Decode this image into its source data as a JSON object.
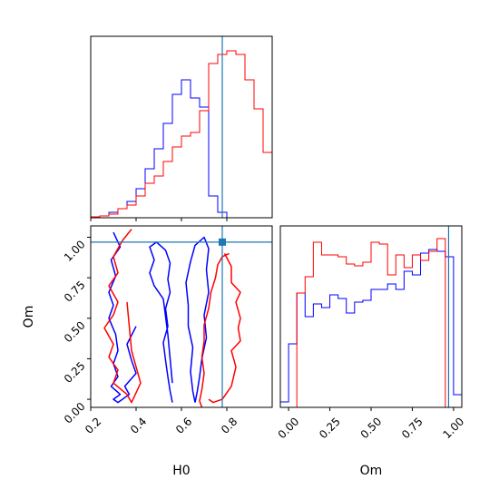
{
  "colors": {
    "series_a": "#0000ff",
    "series_b": "#ff0000",
    "truth": "#1f77b4"
  },
  "chart_data": [
    {
      "type": "bar",
      "panel": "H0 marginal histogram (step)",
      "xlim": [
        0.2,
        1.0
      ],
      "ylim": [
        0,
        1.0
      ],
      "x_ticks": [
        0.2,
        0.4,
        0.6,
        0.8
      ],
      "x_tick_labels": [
        "",
        "",
        "",
        ""
      ],
      "truth_x": 0.78,
      "bin_edges": [
        0.2,
        0.24,
        0.28,
        0.32,
        0.36,
        0.4,
        0.44,
        0.48,
        0.52,
        0.56,
        0.6,
        0.64,
        0.68,
        0.72,
        0.76,
        0.8,
        0.84,
        0.88,
        0.92,
        0.96,
        1.0
      ],
      "series": [
        {
          "name": "",
          "color": "series_a",
          "values": [
            0.005,
            0.01,
            0.03,
            0.05,
            0.09,
            0.16,
            0.27,
            0.38,
            0.52,
            0.68,
            0.76,
            0.66,
            0.61,
            0.12,
            0.03,
            0.0,
            0.0,
            0.0,
            0.0,
            0.0
          ]
        },
        {
          "name": "",
          "color": "series_b",
          "values": [
            0.005,
            0.01,
            0.02,
            0.05,
            0.07,
            0.12,
            0.19,
            0.23,
            0.31,
            0.39,
            0.45,
            0.47,
            0.59,
            0.85,
            0.9,
            0.92,
            0.9,
            0.76,
            0.6,
            0.36
          ]
        }
      ]
    },
    {
      "type": "line",
      "panel": "H0 vs Om joint contours",
      "xlabel": "H0",
      "ylabel": "Om",
      "xlim": [
        0.2,
        1.0
      ],
      "ylim": [
        -0.05,
        1.07
      ],
      "x_ticks": [
        0.2,
        0.4,
        0.6,
        0.8
      ],
      "x_tick_labels": [
        "0.2",
        "0.4",
        "0.6",
        "0.8"
      ],
      "y_ticks": [
        0.0,
        0.25,
        0.5,
        0.75,
        1.0
      ],
      "y_tick_labels": [
        "0.00",
        "0.25",
        "0.50",
        "0.75",
        "1.00"
      ],
      "truth_x": 0.78,
      "truth_y": 0.97,
      "series": [
        {
          "name": "",
          "color": "series_a",
          "x": [
            0.56,
            0.55,
            0.54,
            0.53,
            0.52,
            0.54,
            0.53,
            0.55,
            0.54,
            0.55,
            0.53,
            0.49,
            0.46,
            0.48,
            0.46,
            0.48,
            0.52,
            0.54,
            0.56
          ],
          "y": [
            -0.02,
            0.05,
            0.14,
            0.24,
            0.35,
            0.45,
            0.56,
            0.66,
            0.74,
            0.84,
            0.92,
            0.97,
            0.94,
            0.86,
            0.78,
            0.7,
            0.62,
            0.4,
            0.1
          ]
        },
        {
          "name": "",
          "color": "series_a",
          "x": [
            0.66,
            0.65,
            0.64,
            0.65,
            0.63,
            0.63,
            0.62,
            0.64,
            0.66,
            0.7,
            0.72,
            0.71,
            0.72,
            0.7,
            0.71,
            0.69,
            0.68,
            0.67,
            0.66
          ],
          "y": [
            -0.02,
            0.05,
            0.17,
            0.32,
            0.45,
            0.58,
            0.72,
            0.85,
            0.95,
            1.0,
            0.93,
            0.8,
            0.66,
            0.52,
            0.38,
            0.25,
            0.14,
            0.05,
            -0.02
          ]
        },
        {
          "name": "",
          "color": "series_a",
          "x": [
            0.3,
            0.33,
            0.29,
            0.31,
            0.28,
            0.3,
            0.28,
            0.31,
            0.32,
            0.3,
            0.32,
            0.29,
            0.33,
            0.3,
            0.32,
            0.37,
            0.35,
            0.4,
            0.38,
            0.36,
            0.4
          ],
          "y": [
            1.03,
            0.94,
            0.86,
            0.76,
            0.66,
            0.58,
            0.5,
            0.4,
            0.3,
            0.22,
            0.14,
            0.08,
            0.03,
            0.0,
            -0.02,
            0.03,
            0.08,
            0.16,
            0.24,
            0.34,
            0.45
          ]
        },
        {
          "name": "",
          "color": "series_b",
          "x": [
            0.81,
            0.78,
            0.76,
            0.75,
            0.73,
            0.72,
            0.7,
            0.7,
            0.69,
            0.7,
            0.69,
            0.68,
            0.69
          ],
          "y": [
            0.9,
            0.88,
            0.83,
            0.75,
            0.66,
            0.56,
            0.46,
            0.36,
            0.26,
            0.16,
            0.06,
            -0.01,
            -0.05
          ]
        },
        {
          "name": "",
          "color": "series_b",
          "x": [
            0.79,
            0.82,
            0.82,
            0.86,
            0.84,
            0.86,
            0.85,
            0.86,
            0.82,
            0.84,
            0.82,
            0.78,
            0.74,
            0.72
          ],
          "y": [
            0.9,
            0.82,
            0.72,
            0.66,
            0.6,
            0.5,
            0.44,
            0.36,
            0.3,
            0.2,
            0.08,
            0.0,
            -0.02,
            0.0
          ]
        },
        {
          "name": "",
          "color": "series_b",
          "x": [
            0.38,
            0.34,
            0.3,
            0.32,
            0.28,
            0.32,
            0.3,
            0.26,
            0.3,
            0.28,
            0.32,
            0.3,
            0.36,
            0.38,
            0.42,
            0.38,
            0.36
          ],
          "y": [
            1.05,
            0.98,
            0.88,
            0.78,
            0.7,
            0.6,
            0.52,
            0.44,
            0.34,
            0.26,
            0.18,
            0.1,
            0.03,
            -0.02,
            0.1,
            0.3,
            0.6
          ]
        }
      ]
    },
    {
      "type": "bar",
      "panel": "Om marginal histogram (step)",
      "xlabel": "Om",
      "xlim": [
        -0.05,
        1.05
      ],
      "ylim": [
        0,
        1.0
      ],
      "x_ticks": [
        0.0,
        0.25,
        0.5,
        0.75,
        1.0
      ],
      "x_tick_labels": [
        "0.00",
        "0.25",
        "0.50",
        "0.75",
        "1.00"
      ],
      "truth_x": 0.97,
      "bin_edges": [
        -0.05,
        0.0,
        0.05,
        0.1,
        0.15,
        0.2,
        0.25,
        0.3,
        0.35,
        0.4,
        0.45,
        0.5,
        0.55,
        0.6,
        0.65,
        0.7,
        0.75,
        0.8,
        0.85,
        0.9,
        0.95,
        1.0,
        1.05
      ],
      "series": [
        {
          "name": "",
          "color": "series_a",
          "values": [
            0.03,
            0.35,
            0.63,
            0.5,
            0.57,
            0.55,
            0.62,
            0.6,
            0.52,
            0.58,
            0.59,
            0.65,
            0.65,
            0.68,
            0.65,
            0.75,
            0.73,
            0.85,
            0.87,
            0.86,
            0.83,
            0.07
          ]
        },
        {
          "name": "",
          "color": "series_b",
          "values": [
            0.0,
            0.0,
            0.63,
            0.72,
            0.91,
            0.84,
            0.84,
            0.83,
            0.79,
            0.78,
            0.8,
            0.91,
            0.9,
            0.73,
            0.84,
            0.77,
            0.84,
            0.81,
            0.86,
            0.93,
            0.0,
            0.0
          ]
        }
      ]
    }
  ]
}
